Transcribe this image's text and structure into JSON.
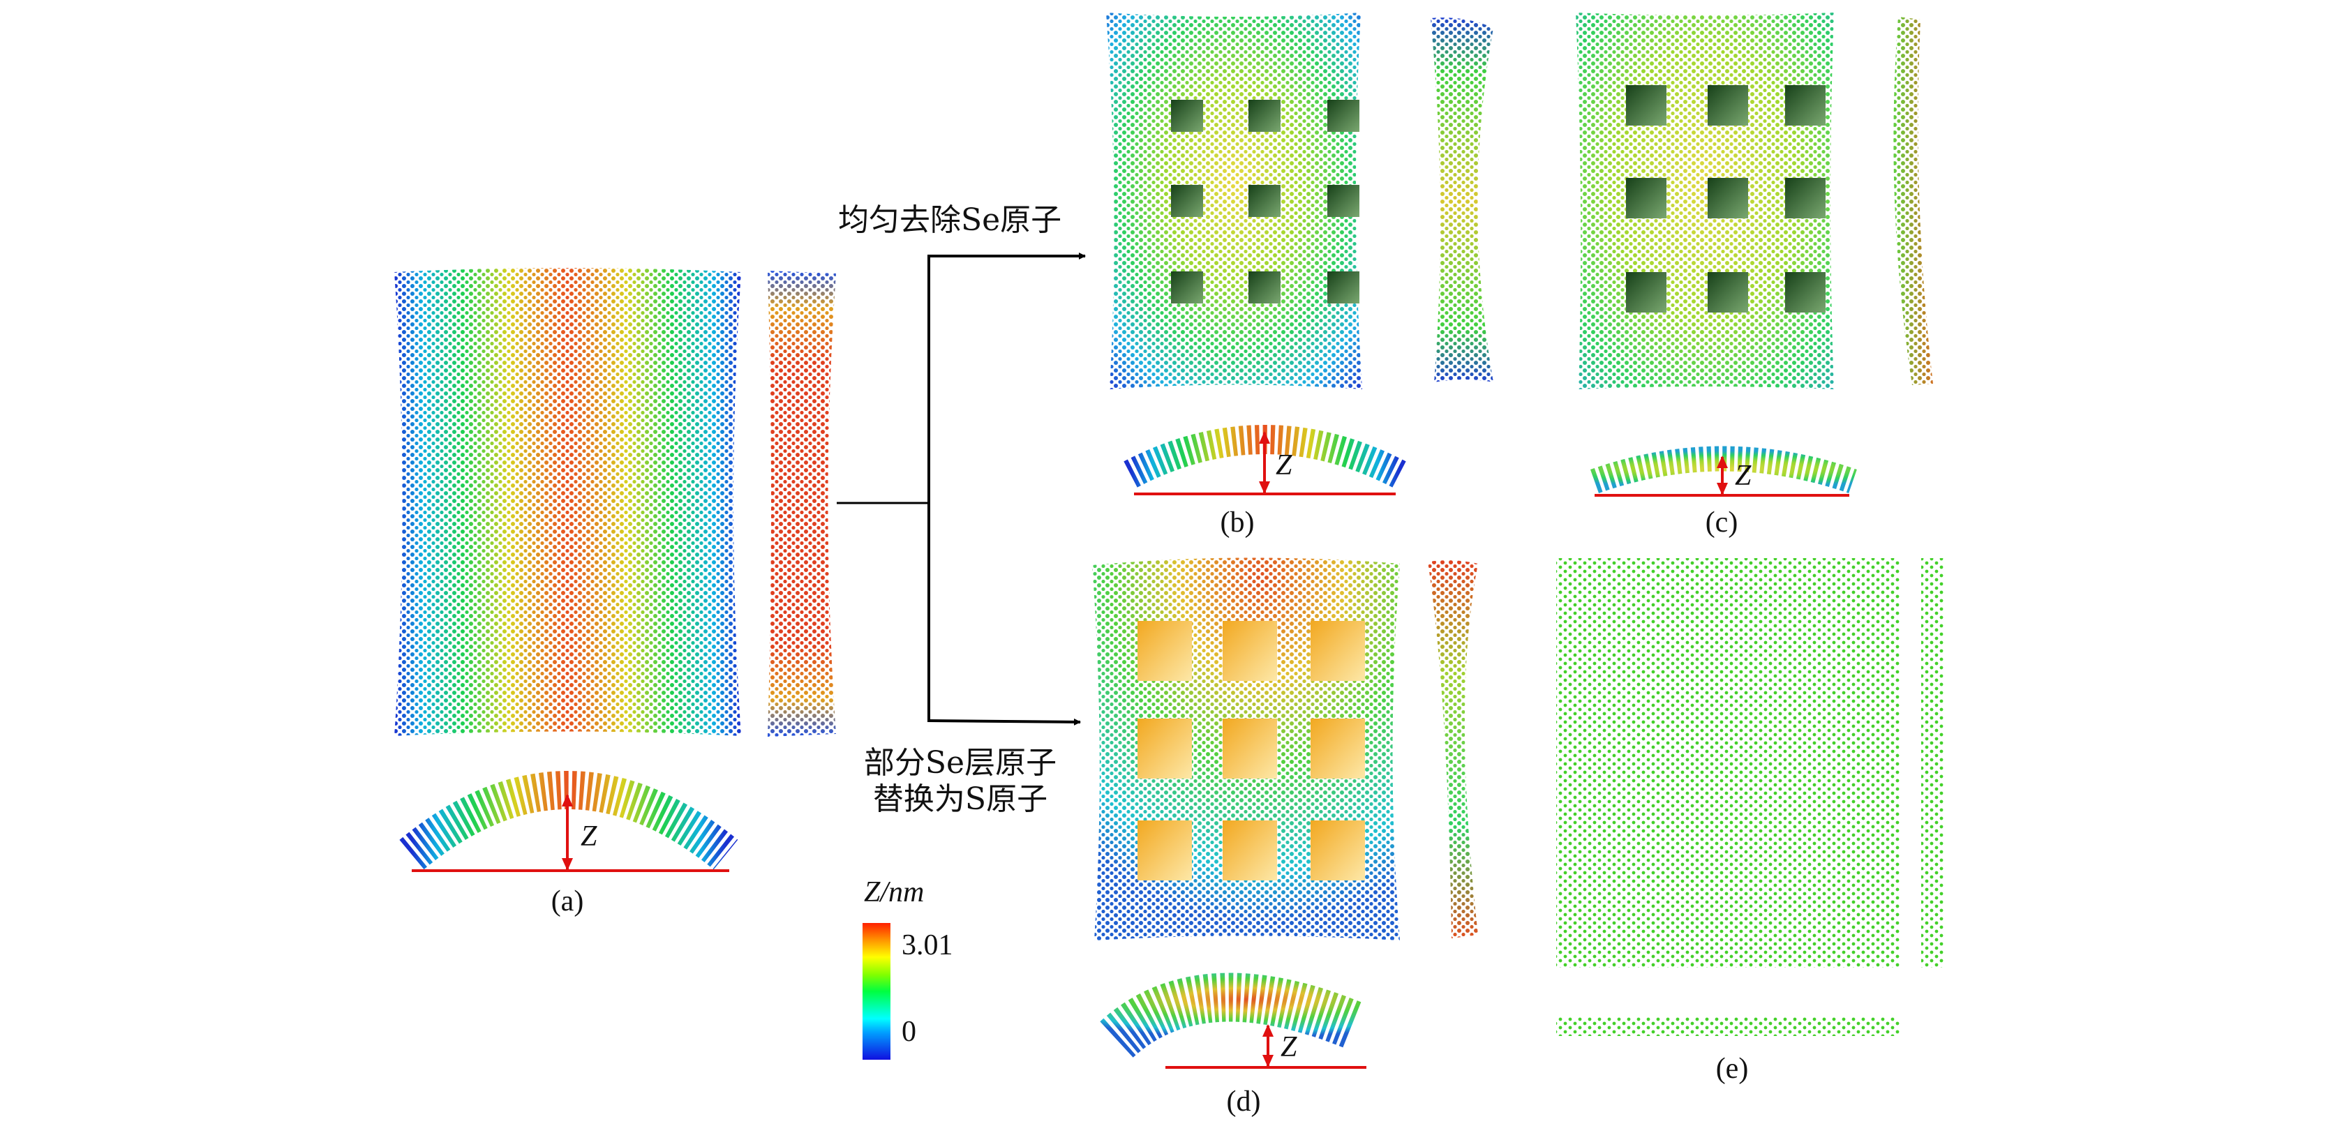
{
  "annotations": {
    "top_arrow_text": "均匀去除Se原子",
    "bottom_arrow_text_line1": "部分Se层原子",
    "bottom_arrow_text_line2": "替换为S原子"
  },
  "panels": [
    {
      "label": "(a)",
      "height_symbol": "Z"
    },
    {
      "label": "(b)",
      "height_symbol": "Z"
    },
    {
      "label": "(c)",
      "height_symbol": "Z"
    },
    {
      "label": "(d)",
      "height_symbol": "Z"
    },
    {
      "label": "(e)"
    }
  ],
  "colorbar": {
    "title": "Z/nm",
    "max_label": "3.01",
    "min_label": "0",
    "min": 0,
    "max": 3.01,
    "colormap": "jet",
    "colors": [
      "#1010e0",
      "#00a0ff",
      "#00ffff",
      "#00ff40",
      "#80ff00",
      "#ffff00",
      "#ff9000",
      "#ff2000"
    ]
  },
  "colors": {
    "height_marker": "#e01010",
    "vacancy_hole": "#2a6a30",
    "sulfur_region": "#f6b935",
    "flat_sheet": "#44d02a"
  }
}
